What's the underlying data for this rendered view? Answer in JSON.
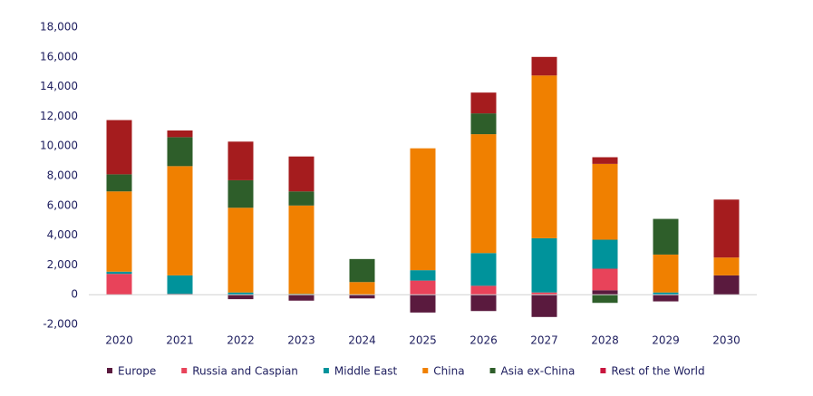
{
  "chart_data": {
    "type": "stacked_bar",
    "categories": [
      "2020",
      "2021",
      "2022",
      "2023",
      "2024",
      "2025",
      "2026",
      "2027",
      "2028",
      "2029",
      "2030"
    ],
    "series": [
      {
        "name": "Europe",
        "color": "#5a1a3e",
        "values": [
          0,
          0,
          -300,
          -400,
          -250,
          -1200,
          -1100,
          -1500,
          300,
          -450,
          1300
        ]
      },
      {
        "name": "Russia and Caspian",
        "color": "#e8435a",
        "values": [
          1400,
          50,
          0,
          0,
          0,
          950,
          600,
          150,
          1450,
          0,
          0
        ]
      },
      {
        "name": "Middle East",
        "color": "#00939b",
        "values": [
          150,
          1250,
          150,
          50,
          0,
          700,
          2200,
          3650,
          1950,
          150,
          0
        ]
      },
      {
        "name": "China",
        "color": "#f08000",
        "values": [
          5400,
          7350,
          5700,
          5950,
          850,
          8200,
          8000,
          10950,
          5100,
          2550,
          1200
        ]
      },
      {
        "name": "Asia ex-China",
        "color": "#2e5e2a",
        "values": [
          1150,
          1950,
          1850,
          950,
          1550,
          0,
          1400,
          0,
          -550,
          2400,
          0
        ]
      },
      {
        "name": "Rest of the World",
        "color": "#a51c1e",
        "values": [
          3650,
          450,
          2600,
          2350,
          0,
          0,
          1400,
          1250,
          450,
          0,
          3900
        ]
      }
    ],
    "ylim": [
      -2000,
      18000
    ],
    "yticks": [
      {
        "value": -2000,
        "label": "-2,000"
      },
      0,
      {
        "value": 2000,
        "label": "2,000"
      },
      {
        "value": 4000,
        "label": "4,000"
      },
      {
        "value": 6000,
        "label": "6,000"
      },
      {
        "value": 8000,
        "label": "8,000"
      },
      {
        "value": 10000,
        "label": "10,000"
      },
      {
        "value": 12000,
        "label": "12,000"
      },
      {
        "value": 14000,
        "label": "14,000"
      },
      {
        "value": 16000,
        "label": "16,000"
      },
      {
        "value": 18000,
        "label": "18,000"
      }
    ],
    "legend": "bottom"
  }
}
